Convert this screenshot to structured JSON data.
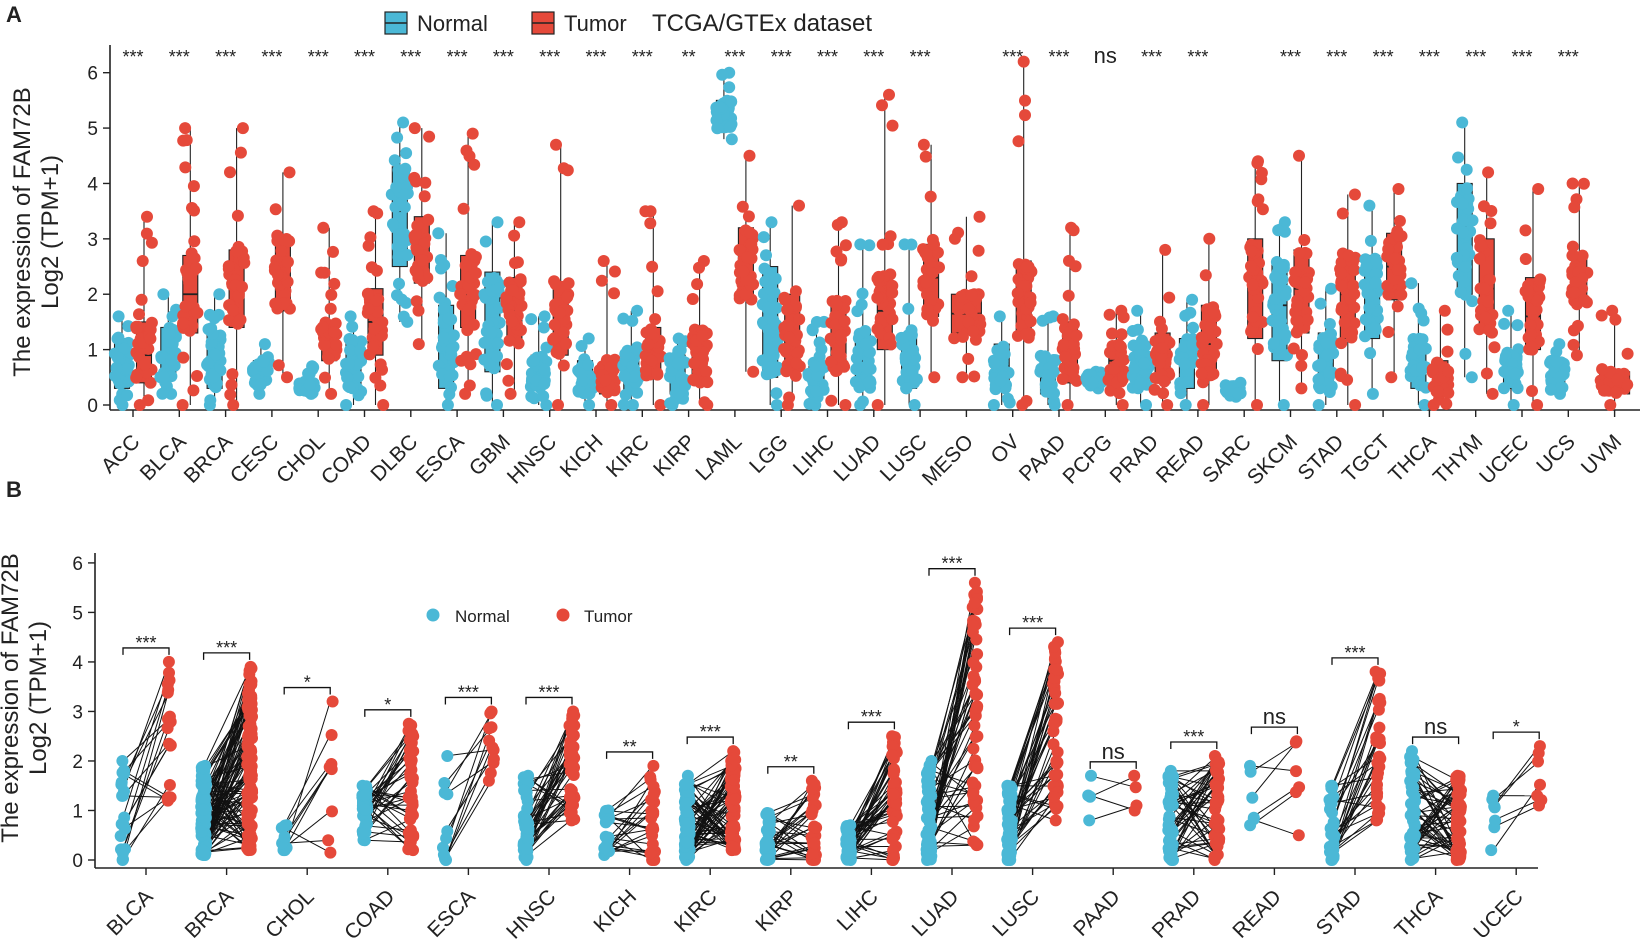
{
  "colors": {
    "normal": "#4bb8d6",
    "tumor": "#e5493a",
    "axis": "#222222"
  },
  "chart_data": [
    {
      "panel": "A",
      "type": "box",
      "title": "TCGA/GTEx dataset",
      "ylabel_line1": "The expression of FAM72B",
      "ylabel_line2": "Log2 (TPM+1)",
      "ylim": [
        0,
        6.5
      ],
      "yticks": [
        0,
        1,
        2,
        3,
        4,
        5,
        6
      ],
      "legend": {
        "position": "top",
        "entries": [
          "Normal",
          "Tumor"
        ]
      },
      "series_names": [
        "Normal",
        "Tumor"
      ],
      "categories": [
        "ACC",
        "BLCA",
        "BRCA",
        "CESC",
        "CHOL",
        "COAD",
        "DLBC",
        "ESCA",
        "GBM",
        "HNSC",
        "KICH",
        "KIRC",
        "KIRP",
        "LAML",
        "LGG",
        "LIHC",
        "LUAD",
        "LUSC",
        "MESO",
        "OV",
        "PAAD",
        "PCPG",
        "PRAD",
        "READ",
        "SARC",
        "SKCM",
        "STAD",
        "TGCT",
        "THCA",
        "THYM",
        "UCEC",
        "UCS",
        "UVM"
      ],
      "significance": [
        "***",
        "***",
        "***",
        "***",
        "***",
        "***",
        "***",
        "***",
        "***",
        "***",
        "***",
        "***",
        "**",
        "***",
        "***",
        "***",
        "***",
        "***",
        "",
        "***",
        "***",
        "ns",
        "***",
        "***",
        "",
        "***",
        "***",
        "***",
        "***",
        "***",
        "***",
        "***",
        ""
      ],
      "normal": [
        {
          "min": 0,
          "q1": 0.3,
          "med": 0.7,
          "q3": 1.2,
          "max": 1.6
        },
        {
          "min": 0.2,
          "q1": 0.5,
          "med": 0.9,
          "q3": 1.4,
          "max": 2.0
        },
        {
          "min": 0,
          "q1": 0.3,
          "med": 0.8,
          "q3": 1.3,
          "max": 2.0
        },
        {
          "min": 0.2,
          "q1": 0.4,
          "med": 0.6,
          "q3": 0.8,
          "max": 1.1
        },
        {
          "min": 0.2,
          "q1": 0.25,
          "med": 0.3,
          "q3": 0.4,
          "max": 0.7
        },
        {
          "min": 0,
          "q1": 0.3,
          "med": 0.8,
          "q3": 1.2,
          "max": 1.6
        },
        {
          "min": 1.5,
          "q1": 2.5,
          "med": 3.5,
          "q3": 4.3,
          "max": 5.1
        },
        {
          "min": 0,
          "q1": 0.3,
          "med": 1.0,
          "q3": 1.8,
          "max": 3.1
        },
        {
          "min": 0,
          "q1": 0.6,
          "med": 1.5,
          "q3": 2.4,
          "max": 3.3
        },
        {
          "min": 0,
          "q1": 0.3,
          "med": 0.6,
          "q3": 0.9,
          "max": 1.6
        },
        {
          "min": 0,
          "q1": 0.2,
          "med": 0.5,
          "q3": 0.8,
          "max": 1.2
        },
        {
          "min": 0,
          "q1": 0.2,
          "med": 0.6,
          "q3": 1.0,
          "max": 1.7
        },
        {
          "min": 0,
          "q1": 0.2,
          "med": 0.5,
          "q3": 0.9,
          "max": 1.2
        },
        {
          "min": 4.8,
          "q1": 5.0,
          "med": 5.2,
          "q3": 5.5,
          "max": 6.0
        },
        {
          "min": 0,
          "q1": 0.5,
          "med": 1.5,
          "q3": 2.5,
          "max": 3.3
        },
        {
          "min": 0,
          "q1": 0.2,
          "med": 0.5,
          "q3": 0.8,
          "max": 1.5
        },
        {
          "min": 0,
          "q1": 0.3,
          "med": 0.8,
          "q3": 1.3,
          "max": 2.9
        },
        {
          "min": 0,
          "q1": 0.3,
          "med": 0.8,
          "q3": 1.3,
          "max": 2.9
        },
        null,
        {
          "min": 0,
          "q1": 0.3,
          "med": 0.7,
          "q3": 1.1,
          "max": 1.6
        },
        {
          "min": 0,
          "q1": 0.2,
          "med": 0.5,
          "q3": 0.9,
          "max": 1.6
        },
        {
          "min": 0.3,
          "q1": 0.4,
          "med": 0.5,
          "q3": 0.55,
          "max": 0.6
        },
        {
          "min": 0,
          "q1": 0.3,
          "med": 0.7,
          "q3": 1.1,
          "max": 1.7
        },
        {
          "min": 0,
          "q1": 0.3,
          "med": 0.8,
          "q3": 1.2,
          "max": 1.9
        },
        {
          "min": 0.15,
          "q1": 0.2,
          "med": 0.25,
          "q3": 0.3,
          "max": 0.4
        },
        {
          "min": 0,
          "q1": 0.8,
          "med": 1.8,
          "q3": 2.6,
          "max": 3.3
        },
        {
          "min": 0,
          "q1": 0.3,
          "med": 0.8,
          "q3": 1.3,
          "max": 2.1
        },
        {
          "min": 0.2,
          "q1": 1.2,
          "med": 2.0,
          "q3": 2.7,
          "max": 3.6
        },
        {
          "min": 0,
          "q1": 0.3,
          "med": 0.7,
          "q3": 1.2,
          "max": 2.2
        },
        {
          "min": 0.5,
          "q1": 2.0,
          "med": 3.2,
          "q3": 4.0,
          "max": 5.1
        },
        {
          "min": 0,
          "q1": 0.3,
          "med": 0.6,
          "q3": 0.9,
          "max": 1.7
        },
        {
          "min": 0.2,
          "q1": 0.4,
          "med": 0.6,
          "q3": 0.8,
          "max": 1.1
        },
        null
      ],
      "tumor": [
        {
          "min": 0,
          "q1": 0.4,
          "med": 0.9,
          "q3": 1.5,
          "max": 3.4
        },
        {
          "min": 0,
          "q1": 1.3,
          "med": 2.0,
          "q3": 2.7,
          "max": 5.0
        },
        {
          "min": 0,
          "q1": 1.4,
          "med": 2.1,
          "q3": 2.8,
          "max": 5.0
        },
        {
          "min": 0.5,
          "q1": 1.7,
          "med": 2.4,
          "q3": 3.0,
          "max": 4.2
        },
        {
          "min": 0.2,
          "q1": 0.8,
          "med": 1.2,
          "q3": 1.5,
          "max": 3.2
        },
        {
          "min": 0,
          "q1": 0.9,
          "med": 1.5,
          "q3": 2.1,
          "max": 3.5
        },
        {
          "min": 1.1,
          "q1": 2.2,
          "med": 2.9,
          "q3": 3.4,
          "max": 5.0
        },
        {
          "min": 0.2,
          "q1": 1.4,
          "med": 2.0,
          "q3": 2.7,
          "max": 4.9
        },
        {
          "min": 0.2,
          "q1": 1.1,
          "med": 1.7,
          "q3": 2.3,
          "max": 3.3
        },
        {
          "min": 0,
          "q1": 0.9,
          "med": 1.6,
          "q3": 2.2,
          "max": 4.7
        },
        {
          "min": 0,
          "q1": 0.2,
          "med": 0.4,
          "q3": 0.7,
          "max": 2.6
        },
        {
          "min": 0,
          "q1": 0.5,
          "med": 0.9,
          "q3": 1.4,
          "max": 3.5
        },
        {
          "min": 0,
          "q1": 0.4,
          "med": 0.9,
          "q3": 1.4,
          "max": 2.6
        },
        {
          "min": 0.6,
          "q1": 1.9,
          "med": 2.6,
          "q3": 3.2,
          "max": 4.5
        },
        {
          "min": 0,
          "q1": 0.6,
          "med": 1.3,
          "q3": 2.0,
          "max": 3.6
        },
        {
          "min": 0,
          "q1": 0.6,
          "med": 1.2,
          "q3": 1.9,
          "max": 3.3
        },
        {
          "min": 0,
          "q1": 1.0,
          "med": 1.7,
          "q3": 2.4,
          "max": 5.6
        },
        {
          "min": 0.5,
          "q1": 1.6,
          "med": 2.3,
          "q3": 2.9,
          "max": 4.7
        },
        {
          "min": 0.5,
          "q1": 1.3,
          "med": 1.65,
          "q3": 2.0,
          "max": 3.4
        },
        {
          "min": 0,
          "q1": 1.2,
          "med": 2.0,
          "q3": 2.6,
          "max": 6.2
        },
        {
          "min": 0,
          "q1": 0.4,
          "med": 0.9,
          "q3": 1.5,
          "max": 3.2
        },
        {
          "min": 0,
          "q1": 0.4,
          "med": 0.8,
          "q3": 1.1,
          "max": 1.7
        },
        {
          "min": 0,
          "q1": 0.4,
          "med": 0.8,
          "q3": 1.3,
          "max": 2.8
        },
        {
          "min": 0,
          "q1": 0.5,
          "med": 1.1,
          "q3": 1.8,
          "max": 3.0
        },
        {
          "min": 0,
          "q1": 1.2,
          "med": 2.2,
          "q3": 3.0,
          "max": 4.4
        },
        {
          "min": 0.3,
          "q1": 1.3,
          "med": 2.1,
          "q3": 2.8,
          "max": 4.5
        },
        {
          "min": 0,
          "q1": 1.2,
          "med": 2.0,
          "q3": 2.7,
          "max": 3.8
        },
        {
          "min": 0.5,
          "q1": 1.9,
          "med": 2.5,
          "q3": 3.1,
          "max": 3.9
        },
        {
          "min": 0,
          "q1": 0.2,
          "med": 0.5,
          "q3": 0.8,
          "max": 1.7
        },
        {
          "min": 0.2,
          "q1": 1.3,
          "med": 2.1,
          "q3": 3.0,
          "max": 4.2
        },
        {
          "min": 0,
          "q1": 1.0,
          "med": 1.6,
          "q3": 2.3,
          "max": 3.9
        },
        {
          "min": 0.9,
          "q1": 1.8,
          "med": 2.2,
          "q3": 2.7,
          "max": 4.0
        },
        {
          "min": 0,
          "q1": 0.2,
          "med": 0.35,
          "q3": 0.6,
          "max": 1.7
        }
      ]
    },
    {
      "panel": "B",
      "type": "paired-scatter",
      "ylabel_line1": "The expression of FAM72B",
      "ylabel_line2": "Log2 (TPM+1)",
      "ylim": [
        0,
        6.2
      ],
      "yticks": [
        0,
        1,
        2,
        3,
        4,
        5,
        6
      ],
      "legend": {
        "position": "top-left",
        "entries": [
          "Normal",
          "Tumor"
        ]
      },
      "categories": [
        "BLCA",
        "BRCA",
        "CHOL",
        "COAD",
        "ESCA",
        "HNSC",
        "KICH",
        "KIRC",
        "KIRP",
        "LIHC",
        "LUAD",
        "LUSC",
        "PAAD",
        "PRAD",
        "READ",
        "STAD",
        "THCA",
        "UCEC"
      ],
      "significance": [
        "***",
        "***",
        "*",
        "*",
        "***",
        "***",
        "**",
        "***",
        "**",
        "***",
        "***",
        "***",
        "ns",
        "***",
        "ns",
        "***",
        "ns",
        "*"
      ],
      "pairs": [
        {
          "n": 19,
          "normal": [
            0.0,
            2.0
          ],
          "tumor": [
            1.2,
            4.0
          ]
        },
        {
          "n": 110,
          "normal": [
            0.1,
            1.9
          ],
          "tumor": [
            0.2,
            3.9
          ]
        },
        {
          "n": 9,
          "normal": [
            0.2,
            0.7
          ],
          "tumor": [
            0.15,
            3.2
          ]
        },
        {
          "n": 41,
          "normal": [
            0.4,
            1.5
          ],
          "tumor": [
            0.2,
            2.75
          ]
        },
        {
          "n": 11,
          "normal": [
            0.0,
            2.1
          ],
          "tumor": [
            1.6,
            3.0
          ]
        },
        {
          "n": 43,
          "normal": [
            0.0,
            1.7
          ],
          "tumor": [
            0.8,
            3.0
          ]
        },
        {
          "n": 25,
          "normal": [
            0.1,
            1.0
          ],
          "tumor": [
            0.0,
            1.9
          ]
        },
        {
          "n": 72,
          "normal": [
            0.0,
            1.7
          ],
          "tumor": [
            0.2,
            2.2
          ]
        },
        {
          "n": 32,
          "normal": [
            0.0,
            0.95
          ],
          "tumor": [
            0.0,
            1.6
          ]
        },
        {
          "n": 50,
          "normal": [
            0.0,
            0.7
          ],
          "tumor": [
            0.0,
            2.5
          ]
        },
        {
          "n": 57,
          "normal": [
            0.0,
            2.0
          ],
          "tumor": [
            0.3,
            5.6
          ]
        },
        {
          "n": 49,
          "normal": [
            0.0,
            1.5
          ],
          "tumor": [
            0.8,
            4.4
          ]
        },
        {
          "n": 4,
          "normal": [
            0.8,
            1.7
          ],
          "tumor": [
            1.0,
            1.7
          ]
        },
        {
          "n": 52,
          "normal": [
            0.0,
            1.8
          ],
          "tumor": [
            0.0,
            2.1
          ]
        },
        {
          "n": 6,
          "normal": [
            0.7,
            1.9
          ],
          "tumor": [
            0.5,
            2.4
          ]
        },
        {
          "n": 32,
          "normal": [
            0.0,
            1.5
          ],
          "tumor": [
            0.8,
            3.8
          ]
        },
        {
          "n": 58,
          "normal": [
            0.0,
            2.2
          ],
          "tumor": [
            0.0,
            1.7
          ]
        },
        {
          "n": 7,
          "normal": [
            0.2,
            1.3
          ],
          "tumor": [
            1.1,
            2.3
          ]
        }
      ]
    }
  ]
}
